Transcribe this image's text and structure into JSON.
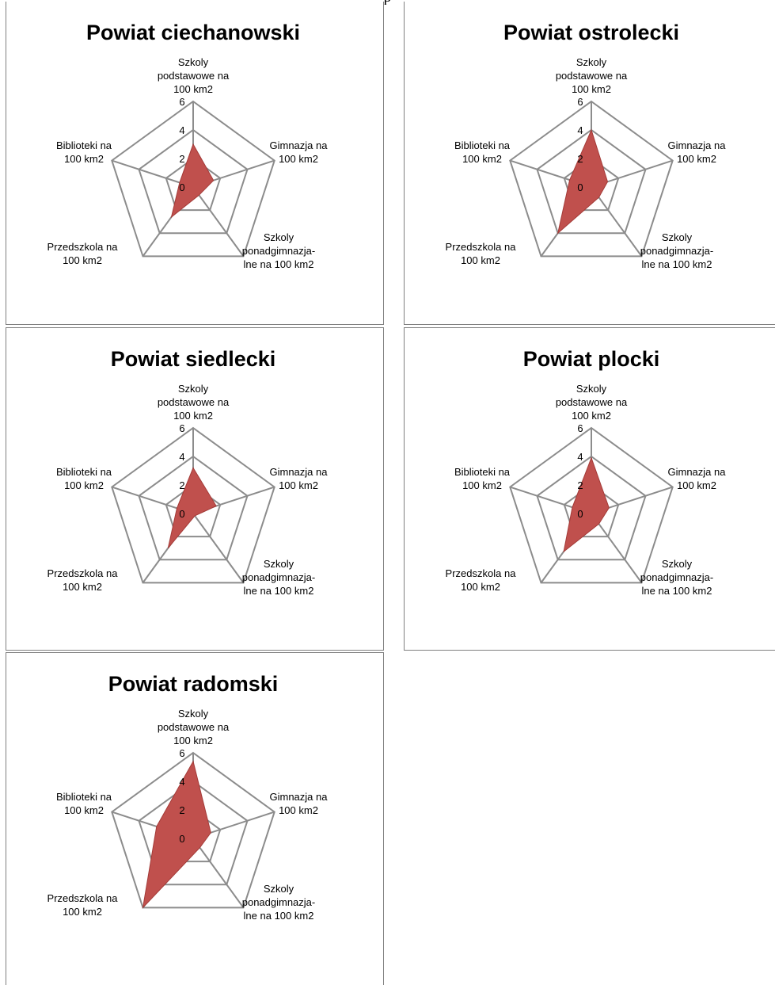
{
  "page": {
    "header_text": "p"
  },
  "colors": {
    "grid": "#8c8c8c",
    "fill": "#c0504d",
    "fill_stroke": "#a33b38",
    "border": "#808080"
  },
  "chart_data": [
    {
      "type": "radar",
      "title": "Powiat ciechanowski",
      "axes": [
        [
          "Szkoly",
          "podstawowe na",
          "100 km2"
        ],
        [
          "Gimnazja na",
          "100 km2"
        ],
        [
          "Szkoly",
          "ponadgimnazja-",
          "lne  na 100 km2"
        ],
        [
          "Przedszkola na",
          "100 km2"
        ],
        [
          "Biblioteki na",
          "100 km2"
        ]
      ],
      "ticks": [
        "0",
        "2",
        "4",
        "6"
      ],
      "rlim": [
        0,
        6
      ],
      "values": [
        3.0,
        1.5,
        0.7,
        2.6,
        1.0
      ]
    },
    {
      "type": "radar",
      "title": "Powiat ostrolecki",
      "axes": [
        [
          "Szkoly",
          "podstawowe na",
          "100 km2"
        ],
        [
          "Gimnazja na",
          "100 km2"
        ],
        [
          "Szkoly",
          "ponadgimnazja-",
          "lne  na 100 km2"
        ],
        [
          "Przedszkola na",
          "100 km2"
        ],
        [
          "Biblioteki na",
          "100 km2"
        ]
      ],
      "ticks": [
        "0",
        "2",
        "4",
        "6"
      ],
      "rlim": [
        0,
        6
      ],
      "values": [
        4.0,
        1.2,
        0.9,
        4.0,
        1.6
      ]
    },
    {
      "type": "radar",
      "title": "Powiat siedlecki",
      "axes": [
        [
          "Szkoly",
          "podstawowe na",
          "100 km2"
        ],
        [
          "Gimnazja na",
          "100 km2"
        ],
        [
          "Szkoly",
          "ponadgimnazja-",
          "lne  na 100 km2"
        ],
        [
          "Przedszkola na",
          "100 km2"
        ],
        [
          "Biblioteki na",
          "100 km2"
        ]
      ],
      "ticks": [
        "0",
        "2",
        "4",
        "6"
      ],
      "rlim": [
        0,
        6
      ],
      "values": [
        3.2,
        1.7,
        0.2,
        3.0,
        1.2
      ]
    },
    {
      "type": "radar",
      "title": "Powiat plocki",
      "axes": [
        [
          "Szkoly",
          "podstawowe na",
          "100 km2"
        ],
        [
          "Gimnazja na",
          "100 km2"
        ],
        [
          "Szkoly",
          "ponadgimnazja-",
          "lne  na 100 km2"
        ],
        [
          "Przedszkola na",
          "100 km2"
        ],
        [
          "Biblioteki na",
          "100 km2"
        ]
      ],
      "ticks": [
        "0",
        "2",
        "4",
        "6"
      ],
      "rlim": [
        0,
        6
      ],
      "values": [
        3.9,
        1.3,
        0.9,
        3.3,
        1.4
      ]
    },
    {
      "type": "radar",
      "title": "Powiat radomski",
      "axes": [
        [
          "Szkoly",
          "podstawowe na",
          "100 km2"
        ],
        [
          "Gimnazja na",
          "100 km2"
        ],
        [
          "Szkoly",
          "ponadgimnazja-",
          "lne  na 100 km2"
        ],
        [
          "Przedszkola na",
          "100 km2"
        ],
        [
          "Biblioteki na",
          "100 km2"
        ]
      ],
      "ticks": [
        "0",
        "2",
        "4",
        "6"
      ],
      "rlim": [
        0,
        6
      ],
      "values": [
        5.4,
        1.3,
        0.8,
        6.0,
        2.7
      ]
    }
  ]
}
